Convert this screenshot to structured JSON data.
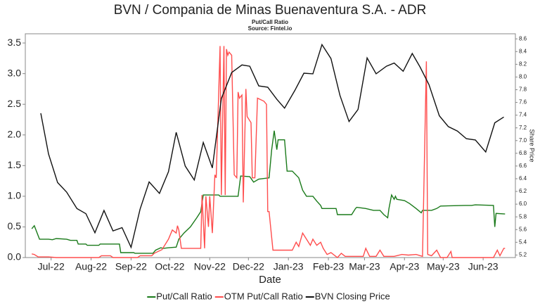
{
  "chart_data": {
    "type": "line",
    "title": "BVN / Compania de Minas Buenaventura S.A. - ADR",
    "subtitle": "Put/Call Ratio",
    "source": "Source: Fintel.io",
    "x_label": "Date",
    "y2_label": "Share Price",
    "xlim": [
      0,
      380
    ],
    "xticks": [
      {
        "value": 20,
        "label": "Jul-22"
      },
      {
        "value": 51,
        "label": "Aug-22"
      },
      {
        "value": 82,
        "label": "Sep-22"
      },
      {
        "value": 112,
        "label": "Oct-22"
      },
      {
        "value": 143,
        "label": "Nov-22"
      },
      {
        "value": 173,
        "label": "Dec-22"
      },
      {
        "value": 204,
        "label": "Jan-23"
      },
      {
        "value": 235,
        "label": "Feb-23"
      },
      {
        "value": 263,
        "label": "Mar-23"
      },
      {
        "value": 294,
        "label": "Apr-23"
      },
      {
        "value": 324,
        "label": "May-23"
      },
      {
        "value": 355,
        "label": "Jun-23"
      }
    ],
    "ylim": [
      0,
      3.65
    ],
    "yticks": [
      {
        "value": 0,
        "label": "0.0"
      },
      0.5,
      {
        "value": 1,
        "label": "1.0"
      },
      1.5,
      {
        "value": 2,
        "label": "2.0"
      },
      2.5,
      {
        "value": 3,
        "label": "3.0"
      },
      3.5
    ],
    "y2lim": [
      5.16,
      8.68
    ],
    "y2ticks": [
      5.2,
      5.4,
      5.6,
      5.8,
      {
        "value": 6,
        "label": "6.0"
      },
      6.2,
      6.4,
      6.6,
      6.8,
      {
        "value": 7,
        "label": "7.0"
      },
      7.2,
      7.4,
      7.6,
      7.8,
      {
        "value": 8,
        "label": "8.0"
      },
      8.2,
      8.4,
      8.6
    ],
    "legend": "bottom",
    "series": [
      {
        "name": "Put/Call Ratio",
        "color": "#1a7a1a",
        "x": [
          5,
          7,
          11,
          18,
          21,
          24,
          32,
          35,
          40,
          41,
          47,
          48,
          57,
          58,
          73,
          74,
          84,
          85,
          99,
          101,
          105,
          107,
          111,
          117,
          119,
          123,
          128,
          133,
          136,
          138,
          150,
          151,
          165,
          167,
          174,
          177,
          181,
          189,
          191,
          193,
          195,
          196,
          201,
          203,
          207,
          212,
          215,
          218,
          223,
          226,
          229,
          230,
          241,
          242,
          253,
          256,
          257,
          264,
          270,
          275,
          278,
          281,
          282,
          284,
          286,
          287,
          288,
          294,
          298,
          303,
          307,
          308,
          315,
          319,
          322,
          341,
          346,
          349,
          363,
          364,
          365,
          372
        ],
        "values": [
          0.47,
          0.52,
          0.3,
          0.3,
          0.29,
          0.31,
          0.3,
          0.28,
          0.28,
          0.22,
          0.22,
          0.2,
          0.2,
          0.22,
          0.22,
          0.08,
          0.08,
          0.07,
          0.07,
          0.12,
          0.16,
          0.15,
          0.16,
          0.17,
          0.3,
          0.4,
          0.5,
          0.65,
          0.75,
          1.02,
          1.02,
          1.0,
          1.0,
          1.33,
          1.32,
          1.23,
          1.28,
          1.3,
          1.75,
          2.07,
          1.76,
          1.92,
          1.92,
          1.41,
          1.41,
          1.3,
          1.1,
          1.0,
          1.0,
          0.92,
          0.85,
          0.8,
          0.8,
          0.7,
          0.7,
          0.8,
          0.82,
          0.8,
          0.77,
          0.77,
          0.7,
          0.65,
          0.8,
          1.02,
          0.95,
          1.0,
          0.95,
          0.93,
          0.88,
          0.8,
          0.73,
          0.77,
          0.77,
          0.8,
          0.84,
          0.85,
          0.85,
          0.86,
          0.85,
          0.5,
          0.72,
          0.71
        ]
      },
      {
        "name": "OTM Put/Call Ratio",
        "color": "#ff4d4d",
        "x": [
          5,
          7,
          10,
          18,
          24,
          40,
          57,
          59,
          66,
          68,
          87,
          89,
          98,
          100,
          106,
          111,
          114,
          117,
          118,
          119,
          121,
          136,
          137,
          139,
          140,
          142,
          143,
          145,
          147,
          148,
          151,
          152,
          154,
          155,
          156,
          157,
          158,
          160,
          162,
          164,
          165,
          166,
          168,
          169,
          171,
          172,
          175,
          176,
          178,
          180,
          185,
          187,
          188,
          189,
          192,
          207,
          210,
          212,
          215,
          218,
          221,
          223,
          226,
          229,
          231,
          234,
          237,
          242,
          245,
          248,
          262,
          264,
          267,
          272,
          275,
          278,
          286,
          292,
          297,
          303,
          308,
          311,
          312,
          315,
          319,
          322,
          327,
          330,
          331,
          363,
          366,
          368,
          371,
          372
        ],
        "values": [
          0.06,
          0.05,
          0.01,
          0.01,
          0.0,
          0.0,
          0.0,
          0.03,
          0.03,
          0.0,
          0.0,
          0.03,
          0.03,
          0.07,
          0.13,
          0.3,
          0.45,
          0.4,
          0.52,
          0.45,
          0.15,
          0.15,
          1.02,
          0.15,
          1.0,
          0.5,
          1.0,
          0.4,
          1.35,
          1.3,
          3.45,
          1.02,
          3.45,
          1.02,
          3.4,
          3.3,
          3.35,
          3.3,
          1.35,
          1.3,
          2.7,
          2.6,
          2.65,
          0.9,
          2.75,
          2.3,
          2.2,
          1.3,
          1.3,
          2.6,
          2.55,
          2.5,
          0.75,
          0.75,
          0.12,
          0.12,
          0.25,
          0.18,
          0.4,
          0.3,
          0.2,
          0.3,
          0.2,
          0.25,
          0.15,
          0.05,
          0.08,
          0.0,
          0.07,
          0.02,
          0.02,
          0.15,
          0.02,
          0.02,
          0.12,
          0.02,
          0.02,
          0.05,
          0.04,
          0.05,
          0.02,
          3.2,
          0.05,
          0.03,
          0.12,
          0.0,
          0.0,
          0.1,
          0.0,
          0.0,
          0.12,
          0.03,
          0.15,
          0.15
        ]
      },
      {
        "name": "BVN Closing Price",
        "color": "#111111",
        "axis": "y2",
        "x": [
          12,
          18,
          25,
          32,
          40,
          47,
          54,
          61,
          68,
          75,
          82,
          89,
          96,
          104,
          111,
          117,
          124,
          131,
          138,
          145,
          152,
          160,
          168,
          174,
          181,
          188,
          195,
          201,
          209,
          216,
          223,
          230,
          237,
          244,
          251,
          258,
          265,
          272,
          280,
          286,
          293,
          300,
          306,
          313,
          321,
          328,
          335,
          342,
          349,
          357,
          364,
          371
        ],
        "values": [
          7.43,
          6.79,
          6.34,
          6.19,
          5.93,
          5.85,
          5.55,
          5.9,
          5.58,
          5.63,
          5.32,
          5.92,
          6.35,
          6.17,
          6.51,
          7.13,
          6.6,
          6.38,
          6.97,
          6.57,
          7.66,
          8.07,
          8.19,
          8.17,
          7.86,
          7.84,
          7.65,
          7.51,
          7.79,
          8.06,
          8.05,
          8.51,
          8.29,
          7.71,
          7.3,
          7.49,
          8.3,
          8.05,
          8.17,
          8.22,
          8.09,
          8.37,
          8.16,
          7.88,
          7.39,
          7.22,
          7.15,
          7.03,
          7.01,
          6.82,
          7.28,
          7.37
        ]
      }
    ]
  }
}
